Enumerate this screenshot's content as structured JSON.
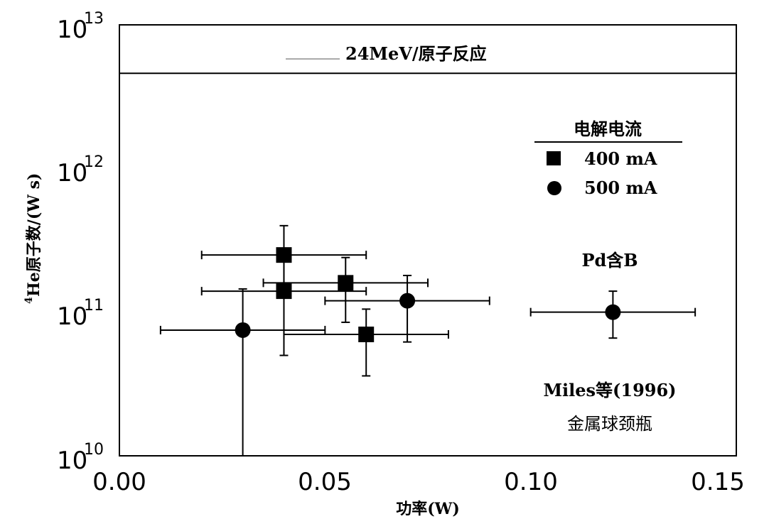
{
  "chart_data": {
    "type": "scatter",
    "xlabel": "功率(W)",
    "ylabel": "He原子数/(W s)",
    "ylabel_superscript": "4",
    "xlim": [
      0.0,
      0.15
    ],
    "ylim": [
      10000000000.0,
      10000000000000.0
    ],
    "yscale": "log",
    "xticks": [
      "0.00",
      "0.05",
      "0.10",
      "0.15"
    ],
    "yticks": [
      {
        "base": "10",
        "exp": "10"
      },
      {
        "base": "10",
        "exp": "11"
      },
      {
        "base": "10",
        "exp": "12"
      },
      {
        "base": "10",
        "exp": "13"
      }
    ],
    "reference_line": {
      "y": 4600000000000.0,
      "label": "24MeV/原子反应"
    },
    "legend": {
      "title": "电解电流",
      "position": "top-right",
      "items": [
        {
          "label": "400 mA",
          "marker": "square"
        },
        {
          "label": "500 mA",
          "marker": "circle"
        }
      ]
    },
    "series": [
      {
        "name": "400 mA",
        "marker": "square",
        "points": [
          {
            "x": 0.04,
            "y": 250000000000.0,
            "xerr": [
              0.02,
              0.06
            ],
            "yerr": [
              140000000000.0,
              400000000000.0
            ]
          },
          {
            "x": 0.04,
            "y": 140000000000.0,
            "xerr": [
              0.02,
              0.06
            ],
            "yerr": [
              50000000000.0,
              230000000000.0
            ]
          },
          {
            "x": 0.055,
            "y": 160000000000.0,
            "xerr": [
              0.035,
              0.075
            ],
            "yerr": [
              85000000000.0,
              240000000000.0
            ]
          },
          {
            "x": 0.06,
            "y": 70000000000.0,
            "xerr": [
              0.04,
              0.08
            ],
            "yerr": [
              36000000000.0,
              105000000000.0
            ]
          }
        ]
      },
      {
        "name": "500 mA",
        "marker": "circle",
        "points": [
          {
            "x": 0.03,
            "y": 75000000000.0,
            "xerr": [
              0.01,
              0.05
            ],
            "yerr": [
              10000000000.0,
              145000000000.0
            ]
          },
          {
            "x": 0.07,
            "y": 120000000000.0,
            "xerr": [
              0.05,
              0.09
            ],
            "yerr": [
              62000000000.0,
              180000000000.0
            ]
          },
          {
            "x": 0.12,
            "y": 100000000000.0,
            "xerr": [
              0.1,
              0.14
            ],
            "yerr": [
              66000000000.0,
              140000000000.0
            ]
          }
        ]
      }
    ],
    "annotations": [
      {
        "text": "Pd含B"
      },
      {
        "text": "Miles等(1996)"
      },
      {
        "text": "金属球颈瓶"
      }
    ]
  }
}
